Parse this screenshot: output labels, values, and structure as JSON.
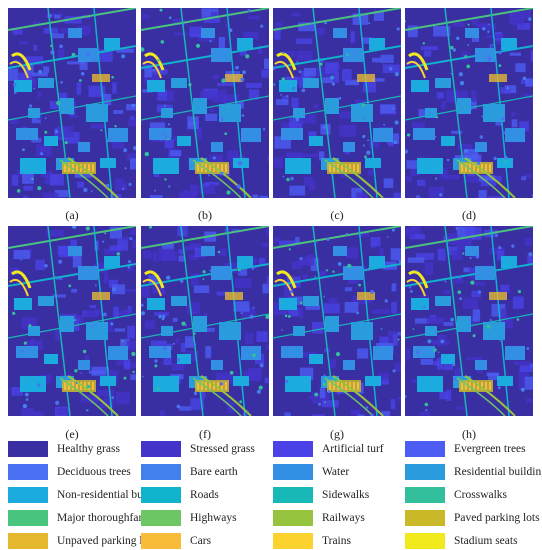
{
  "panels": [
    {
      "caption": "(a)"
    },
    {
      "caption": "(b)"
    },
    {
      "caption": "(c)"
    },
    {
      "caption": "(d)"
    },
    {
      "caption": "(e)"
    },
    {
      "caption": "(f)"
    },
    {
      "caption": "(g)"
    },
    {
      "caption": "(h)"
    }
  ],
  "legend": [
    {
      "label": "Healthy grass",
      "color": "#3a2ea3"
    },
    {
      "label": "Stressed grass",
      "color": "#4433c9"
    },
    {
      "label": "Artificial turf",
      "color": "#4a42e6"
    },
    {
      "label": "Evergreen trees",
      "color": "#4d5cf2"
    },
    {
      "label": "Deciduous trees",
      "color": "#4a6ff0"
    },
    {
      "label": "Bare earth",
      "color": "#4280ec"
    },
    {
      "label": "Water",
      "color": "#338fe3"
    },
    {
      "label": "Residential buildings",
      "color": "#2a9bdd"
    },
    {
      "label": "Non-residential buildings",
      "color": "#1cabde"
    },
    {
      "label": "Roads",
      "color": "#0fb4cc"
    },
    {
      "label": "Sidewalks",
      "color": "#17b8b5"
    },
    {
      "label": "Crosswalks",
      "color": "#33bf9c"
    },
    {
      "label": "Major thoroughfares",
      "color": "#49c47e"
    },
    {
      "label": "Highways",
      "color": "#6cc663"
    },
    {
      "label": "Railways",
      "color": "#97c43f"
    },
    {
      "label": "Paved parking lots",
      "color": "#c9b929"
    },
    {
      "label": "Unpaved parking lots",
      "color": "#e6b830"
    },
    {
      "label": "Cars",
      "color": "#f9bb3a"
    },
    {
      "label": "Trains",
      "color": "#fcd22f"
    },
    {
      "label": "Stadium seats",
      "color": "#f1ea1c"
    }
  ]
}
